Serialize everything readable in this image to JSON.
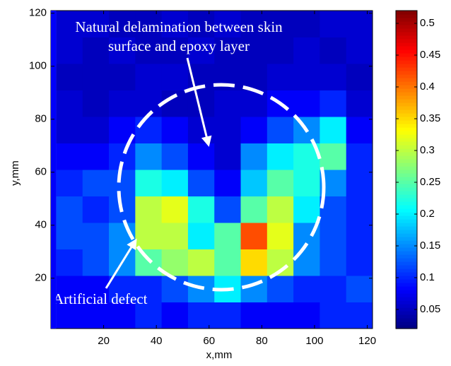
{
  "chart_data": {
    "type": "heatmap",
    "xlabel": "x,mm",
    "ylabel": "y,mm",
    "annotations": [
      "Natural delamination between skin",
      "surface and epoxy layer",
      "Artificial defect"
    ],
    "xlim": [
      0,
      122
    ],
    "ylim": [
      1,
      121
    ],
    "xticks": [
      20,
      40,
      60,
      80,
      100,
      120
    ],
    "yticks": [
      20,
      40,
      60,
      80,
      100,
      120
    ],
    "x_edges": [
      2,
      12,
      22,
      32,
      42,
      52,
      62,
      72,
      82,
      92,
      102,
      112,
      122
    ],
    "y_edges": [
      1,
      11,
      21,
      31,
      41,
      51,
      61,
      71,
      81,
      91,
      101,
      111,
      121
    ],
    "z": [
      [
        0.08,
        0.08,
        0.08,
        0.1,
        0.08,
        0.1,
        0.1,
        0.08,
        0.08,
        0.08,
        0.1,
        0.1
      ],
      [
        0.08,
        0.08,
        0.1,
        0.1,
        0.12,
        0.15,
        0.2,
        0.15,
        0.12,
        0.1,
        0.1,
        0.12
      ],
      [
        0.1,
        0.12,
        0.15,
        0.25,
        0.28,
        0.3,
        0.25,
        0.35,
        0.3,
        0.15,
        0.12,
        0.1
      ],
      [
        0.12,
        0.12,
        0.15,
        0.3,
        0.3,
        0.2,
        0.25,
        0.42,
        0.32,
        0.15,
        0.12,
        0.1
      ],
      [
        0.12,
        0.1,
        0.12,
        0.3,
        0.32,
        0.22,
        0.12,
        0.25,
        0.3,
        0.2,
        0.12,
        0.1
      ],
      [
        0.1,
        0.12,
        0.12,
        0.22,
        0.2,
        0.12,
        0.08,
        0.18,
        0.25,
        0.22,
        0.15,
        0.1
      ],
      [
        0.08,
        0.08,
        0.1,
        0.15,
        0.12,
        0.08,
        0.06,
        0.15,
        0.2,
        0.22,
        0.25,
        0.1
      ],
      [
        0.06,
        0.06,
        0.08,
        0.1,
        0.08,
        0.06,
        0.06,
        0.08,
        0.12,
        0.15,
        0.2,
        0.08
      ],
      [
        0.06,
        0.05,
        0.06,
        0.06,
        0.05,
        0.05,
        0.06,
        0.06,
        0.08,
        0.08,
        0.1,
        0.06
      ],
      [
        0.05,
        0.05,
        0.05,
        0.06,
        0.06,
        0.05,
        0.05,
        0.05,
        0.06,
        0.06,
        0.06,
        0.05
      ],
      [
        0.06,
        0.05,
        0.06,
        0.05,
        0.05,
        0.06,
        0.05,
        0.05,
        0.05,
        0.06,
        0.05,
        0.06
      ],
      [
        0.06,
        0.06,
        0.05,
        0.05,
        0.06,
        0.05,
        0.06,
        0.05,
        0.05,
        0.05,
        0.06,
        0.06
      ]
    ],
    "clim": [
      0.02,
      0.52
    ],
    "cticks": [
      0.05,
      0.1,
      0.15,
      0.2,
      0.25,
      0.3,
      0.35,
      0.4,
      0.45,
      0.5
    ]
  }
}
